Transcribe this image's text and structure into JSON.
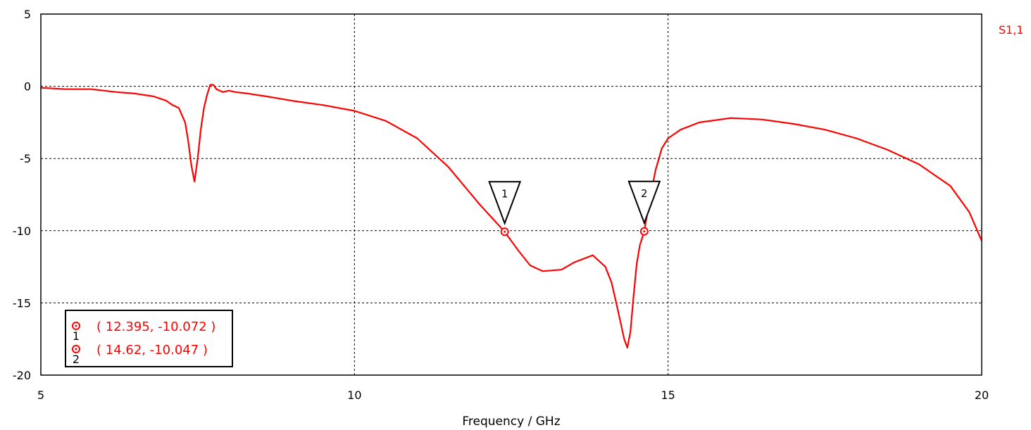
{
  "chart_data": {
    "type": "line",
    "title": "",
    "xlabel": "Frequency / GHz",
    "ylabel": "",
    "xlim": [
      5,
      20
    ],
    "ylim": [
      -20,
      5
    ],
    "xticks": [
      5,
      10,
      15,
      20
    ],
    "yticks": [
      5,
      0,
      -5,
      -10,
      -15,
      -20
    ],
    "grid": true,
    "series": [
      {
        "name": "S1,1",
        "color": "#ff0000",
        "x": [
          5.0,
          5.4,
          5.8,
          6.2,
          6.5,
          6.8,
          7.0,
          7.1,
          7.2,
          7.3,
          7.35,
          7.4,
          7.45,
          7.5,
          7.55,
          7.6,
          7.65,
          7.7,
          7.75,
          7.8,
          7.9,
          8.0,
          8.1,
          8.3,
          8.6,
          9.0,
          9.5,
          10.0,
          10.5,
          11.0,
          11.5,
          12.0,
          12.395,
          12.6,
          12.8,
          13.0,
          13.3,
          13.5,
          13.8,
          14.0,
          14.1,
          14.2,
          14.3,
          14.35,
          14.4,
          14.45,
          14.5,
          14.55,
          14.62,
          14.7,
          14.8,
          14.9,
          15.0,
          15.2,
          15.5,
          16.0,
          16.5,
          17.0,
          17.5,
          18.0,
          18.5,
          19.0,
          19.5,
          19.8,
          20.0
        ],
        "values": [
          -0.1,
          -0.2,
          -0.2,
          -0.4,
          -0.5,
          -0.7,
          -1.0,
          -1.3,
          -1.5,
          -2.5,
          -3.8,
          -5.5,
          -6.6,
          -5.0,
          -3.0,
          -1.5,
          -0.6,
          0.1,
          0.1,
          -0.2,
          -0.4,
          -0.3,
          -0.4,
          -0.5,
          -0.7,
          -1.0,
          -1.3,
          -1.7,
          -2.4,
          -3.6,
          -5.6,
          -8.2,
          -10.072,
          -11.3,
          -12.4,
          -12.8,
          -12.7,
          -12.2,
          -11.7,
          -12.5,
          -13.6,
          -15.5,
          -17.5,
          -18.1,
          -17.0,
          -14.5,
          -12.3,
          -11.0,
          -10.047,
          -8.0,
          -5.8,
          -4.3,
          -3.6,
          -3.0,
          -2.5,
          -2.2,
          -2.3,
          -2.6,
          -3.0,
          -3.6,
          -4.4,
          -5.4,
          -6.9,
          -8.7,
          -10.7
        ]
      }
    ],
    "markers": [
      {
        "id": "1",
        "x": 12.395,
        "y": -10.072
      },
      {
        "id": "2",
        "x": 14.62,
        "y": -10.047
      }
    ],
    "marker_legend": [
      {
        "id": "1",
        "text": "( 12.395, -10.072 )"
      },
      {
        "id": "2",
        "text": "( 14.62, -10.047 )"
      }
    ]
  }
}
